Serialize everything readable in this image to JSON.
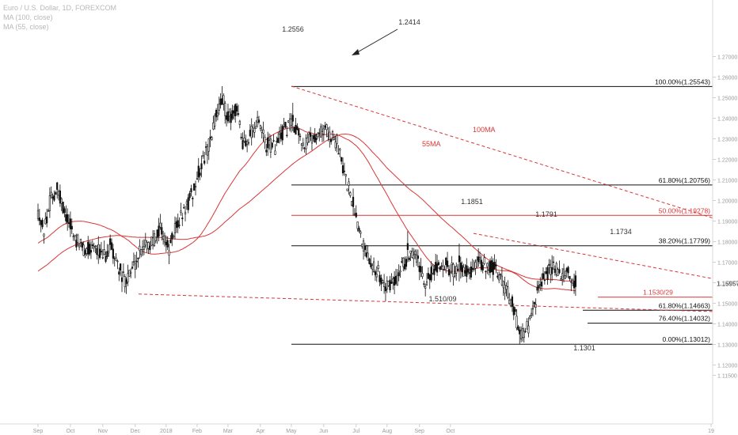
{
  "legend": {
    "symbol": "Euro / U.S. Dollar, 1D, FOREXCOM",
    "ma100": "MA (100, close)",
    "ma55": "MA (55, close)"
  },
  "colors": {
    "candle": "#111111",
    "ma": "#d93636",
    "fib_black": "#111111",
    "fib_red": "#d93636",
    "axis_text": "#9a9a9a",
    "price_label": "#333333"
  },
  "chart_data": {
    "type": "candlestick",
    "symbol": "EUR/USD",
    "timeframe": "1D",
    "ylim": [
      1.115,
      1.27
    ],
    "x_ticks": [
      "Sep",
      "Oct",
      "Nov",
      "Dec",
      "2018",
      "Feb",
      "Mar",
      "Apr",
      "May",
      "Jun",
      "Jul",
      "Aug",
      "Sep",
      "Oct",
      "19"
    ],
    "y_ticks": [
      "1.27000",
      "1.26000",
      "1.25000",
      "1.24000",
      "1.23000",
      "1.22000",
      "1.21000",
      "1.20000",
      "1.19000",
      "1.18000",
      "1.17000",
      "1.16000",
      "1.15000",
      "1.14000",
      "1.13000",
      "1.12000",
      "1.11500"
    ],
    "last_price": "1.15957",
    "ma_labels": {
      "ma100": "100MA",
      "ma55": "55MA"
    },
    "fib_levels": [
      {
        "label": "100.00%(1.25543)",
        "value": 1.25543,
        "color": "black"
      },
      {
        "label": "61.80%(1.20756)",
        "value": 1.20756,
        "color": "black"
      },
      {
        "label": "50.00%(1.19278)",
        "value": 1.19278,
        "color": "red"
      },
      {
        "label": "38.20%(1.17799)",
        "value": 1.17799,
        "color": "black"
      },
      {
        "label": "61.80%(1.14663)",
        "value": 1.14663,
        "color": "black"
      },
      {
        "label": "76.40%(1.14032)",
        "value": 1.14032,
        "color": "black"
      },
      {
        "label": "0.00%(1.13012)",
        "value": 1.13012,
        "color": "black"
      }
    ],
    "support_label": "1.1530/29",
    "annotations": [
      "1.2556",
      "1.2414",
      "1.1851",
      "1.1791",
      "1.1734",
      "1.510/09",
      "1.1301"
    ]
  }
}
